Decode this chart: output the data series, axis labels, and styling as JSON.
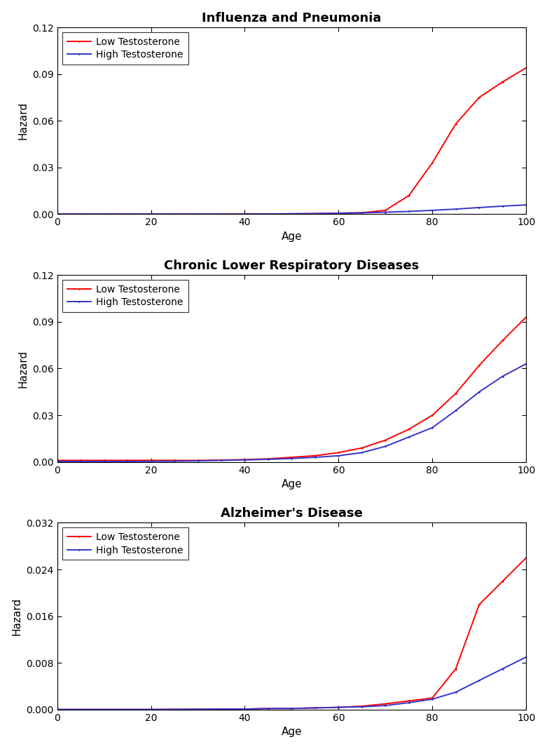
{
  "plots": [
    {
      "title": "Influenza and Pneumonia",
      "ylim": [
        0,
        0.12
      ],
      "yticks": [
        0.0,
        0.03,
        0.06,
        0.09,
        0.12
      ],
      "ytick_labels": [
        "0.00",
        "0.03",
        "0.06",
        "0.09",
        "0.12"
      ],
      "low_x": [
        0,
        5,
        10,
        15,
        20,
        25,
        30,
        35,
        40,
        45,
        50,
        55,
        60,
        65,
        70,
        75,
        80,
        85,
        90,
        95,
        100
      ],
      "low_y": [
        0.0001,
        0.0001,
        0.0001,
        0.0001,
        0.0001,
        0.0001,
        0.0001,
        0.0001,
        0.0002,
        0.0002,
        0.0003,
        0.0004,
        0.0007,
        0.001,
        0.0025,
        0.012,
        0.033,
        0.058,
        0.075,
        0.085,
        0.094
      ],
      "high_x": [
        0,
        5,
        10,
        15,
        20,
        25,
        30,
        35,
        40,
        45,
        50,
        55,
        60,
        65,
        70,
        75,
        80,
        85,
        90,
        95,
        100
      ],
      "high_y": [
        0.0001,
        0.0001,
        0.0001,
        0.0001,
        0.0001,
        0.0001,
        0.0001,
        0.0001,
        0.0001,
        0.0002,
        0.0003,
        0.0004,
        0.0006,
        0.0009,
        0.0013,
        0.0018,
        0.0025,
        0.0033,
        0.0043,
        0.0052,
        0.006
      ]
    },
    {
      "title": "Chronic Lower Respiratory Diseases",
      "ylim": [
        0,
        0.12
      ],
      "yticks": [
        0.0,
        0.03,
        0.06,
        0.09,
        0.12
      ],
      "ytick_labels": [
        "0.00",
        "0.03",
        "0.06",
        "0.09",
        "0.12"
      ],
      "low_x": [
        0,
        5,
        10,
        15,
        20,
        25,
        30,
        35,
        40,
        45,
        50,
        55,
        60,
        65,
        70,
        75,
        80,
        85,
        90,
        95,
        100
      ],
      "low_y": [
        0.001,
        0.001,
        0.001,
        0.001,
        0.001,
        0.001,
        0.001,
        0.0012,
        0.0015,
        0.002,
        0.003,
        0.004,
        0.006,
        0.009,
        0.014,
        0.021,
        0.03,
        0.044,
        0.062,
        0.078,
        0.093
      ],
      "high_x": [
        0,
        5,
        10,
        15,
        20,
        25,
        30,
        35,
        40,
        45,
        50,
        55,
        60,
        65,
        70,
        75,
        80,
        85,
        90,
        95,
        100
      ],
      "high_y": [
        0.0003,
        0.0003,
        0.0003,
        0.0003,
        0.0004,
        0.0005,
        0.0007,
        0.001,
        0.0013,
        0.0017,
        0.0022,
        0.003,
        0.004,
        0.006,
        0.01,
        0.016,
        0.022,
        0.033,
        0.045,
        0.055,
        0.063
      ]
    },
    {
      "title": "Alzheimer's Disease",
      "ylim": [
        0,
        0.032
      ],
      "yticks": [
        0.0,
        0.008,
        0.016,
        0.024,
        0.032
      ],
      "ytick_labels": [
        "0.000",
        "0.008",
        "0.016",
        "0.024",
        "0.032"
      ],
      "low_x": [
        0,
        5,
        10,
        15,
        20,
        25,
        30,
        35,
        40,
        45,
        50,
        55,
        60,
        65,
        70,
        75,
        80,
        85,
        90,
        95,
        100
      ],
      "low_y": [
        3e-05,
        3e-05,
        3e-05,
        3e-05,
        3e-05,
        5e-05,
        7e-05,
        0.0001,
        0.0001,
        0.0002,
        0.0002,
        0.0003,
        0.0004,
        0.0006,
        0.001,
        0.0015,
        0.002,
        0.007,
        0.018,
        0.022,
        0.026
      ],
      "high_x": [
        0,
        5,
        10,
        15,
        20,
        25,
        30,
        35,
        40,
        45,
        50,
        55,
        60,
        65,
        70,
        75,
        80,
        85,
        90,
        95,
        100
      ],
      "high_y": [
        3e-05,
        3e-05,
        3e-05,
        3e-05,
        3e-05,
        5e-05,
        7e-05,
        0.0001,
        0.0001,
        0.0002,
        0.0002,
        0.0003,
        0.0004,
        0.0005,
        0.0007,
        0.0012,
        0.0018,
        0.003,
        0.005,
        0.007,
        0.009
      ]
    }
  ],
  "low_color": "#ff0000",
  "high_color": "#3333cc",
  "low_label": "Low Testosterone",
  "high_label": "High Testosterone",
  "xlabel": "Age",
  "ylabel": "Hazard",
  "xticks": [
    0,
    20,
    40,
    60,
    80,
    100
  ],
  "background_color": "#ffffff",
  "title_fontsize": 13,
  "label_fontsize": 11,
  "tick_fontsize": 10,
  "legend_fontsize": 10
}
